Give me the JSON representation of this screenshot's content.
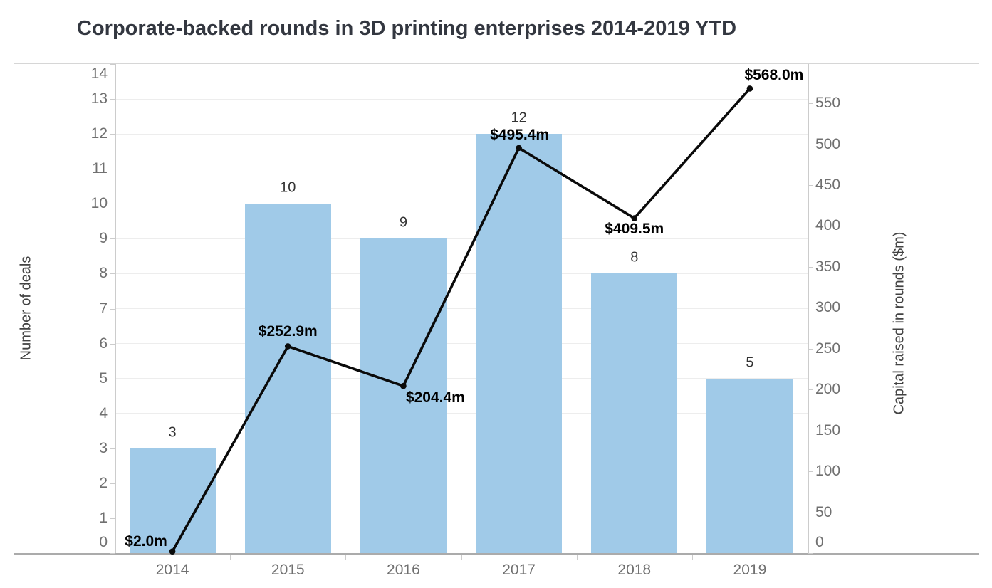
{
  "title": "Corporate-backed rounds in 3D printing enterprises 2014-2019 YTD",
  "chart_data": {
    "type": "bar",
    "subtype": "bar-line-combo",
    "title": "Corporate-backed rounds in 3D printing enterprises 2014-2019 YTD",
    "categories": [
      "2014",
      "2015",
      "2016",
      "2017",
      "2018",
      "2019"
    ],
    "series": [
      {
        "name": "Number of deals",
        "type": "bar",
        "axis": "left",
        "color": "#A0CAE8",
        "values": [
          3,
          10,
          9,
          12,
          8,
          5
        ],
        "point_labels": [
          "3",
          "10",
          "9",
          "12",
          "8",
          "5"
        ]
      },
      {
        "name": "Capital raised in rounds ($m)",
        "type": "line",
        "axis": "right",
        "color": "#0a0a0a",
        "values": [
          2.0,
          252.9,
          204.4,
          495.4,
          409.5,
          568.0
        ],
        "point_labels": [
          "$2.0m",
          "$252.9m",
          "$204.4m",
          "$495.4m",
          "$409.5m",
          "$568.0m"
        ],
        "point_label_offsets": [
          [
            -37,
            -14
          ],
          [
            0,
            -20
          ],
          [
            45,
            17
          ],
          [
            1,
            -18
          ],
          [
            0,
            15
          ],
          [
            34,
            -18
          ]
        ]
      }
    ],
    "left_axis": {
      "title": "Number of deals",
      "min": 0,
      "max": 14,
      "ticks": [
        0,
        1,
        2,
        3,
        4,
        5,
        6,
        7,
        8,
        9,
        10,
        11,
        12,
        13,
        14
      ]
    },
    "right_axis": {
      "title": "Capital raised in rounds ($m)",
      "min": 0,
      "max": 598,
      "ticks": [
        0,
        50,
        100,
        150,
        200,
        250,
        300,
        350,
        400,
        450,
        500,
        550
      ]
    },
    "grid": "horizontal",
    "legend": "none"
  }
}
